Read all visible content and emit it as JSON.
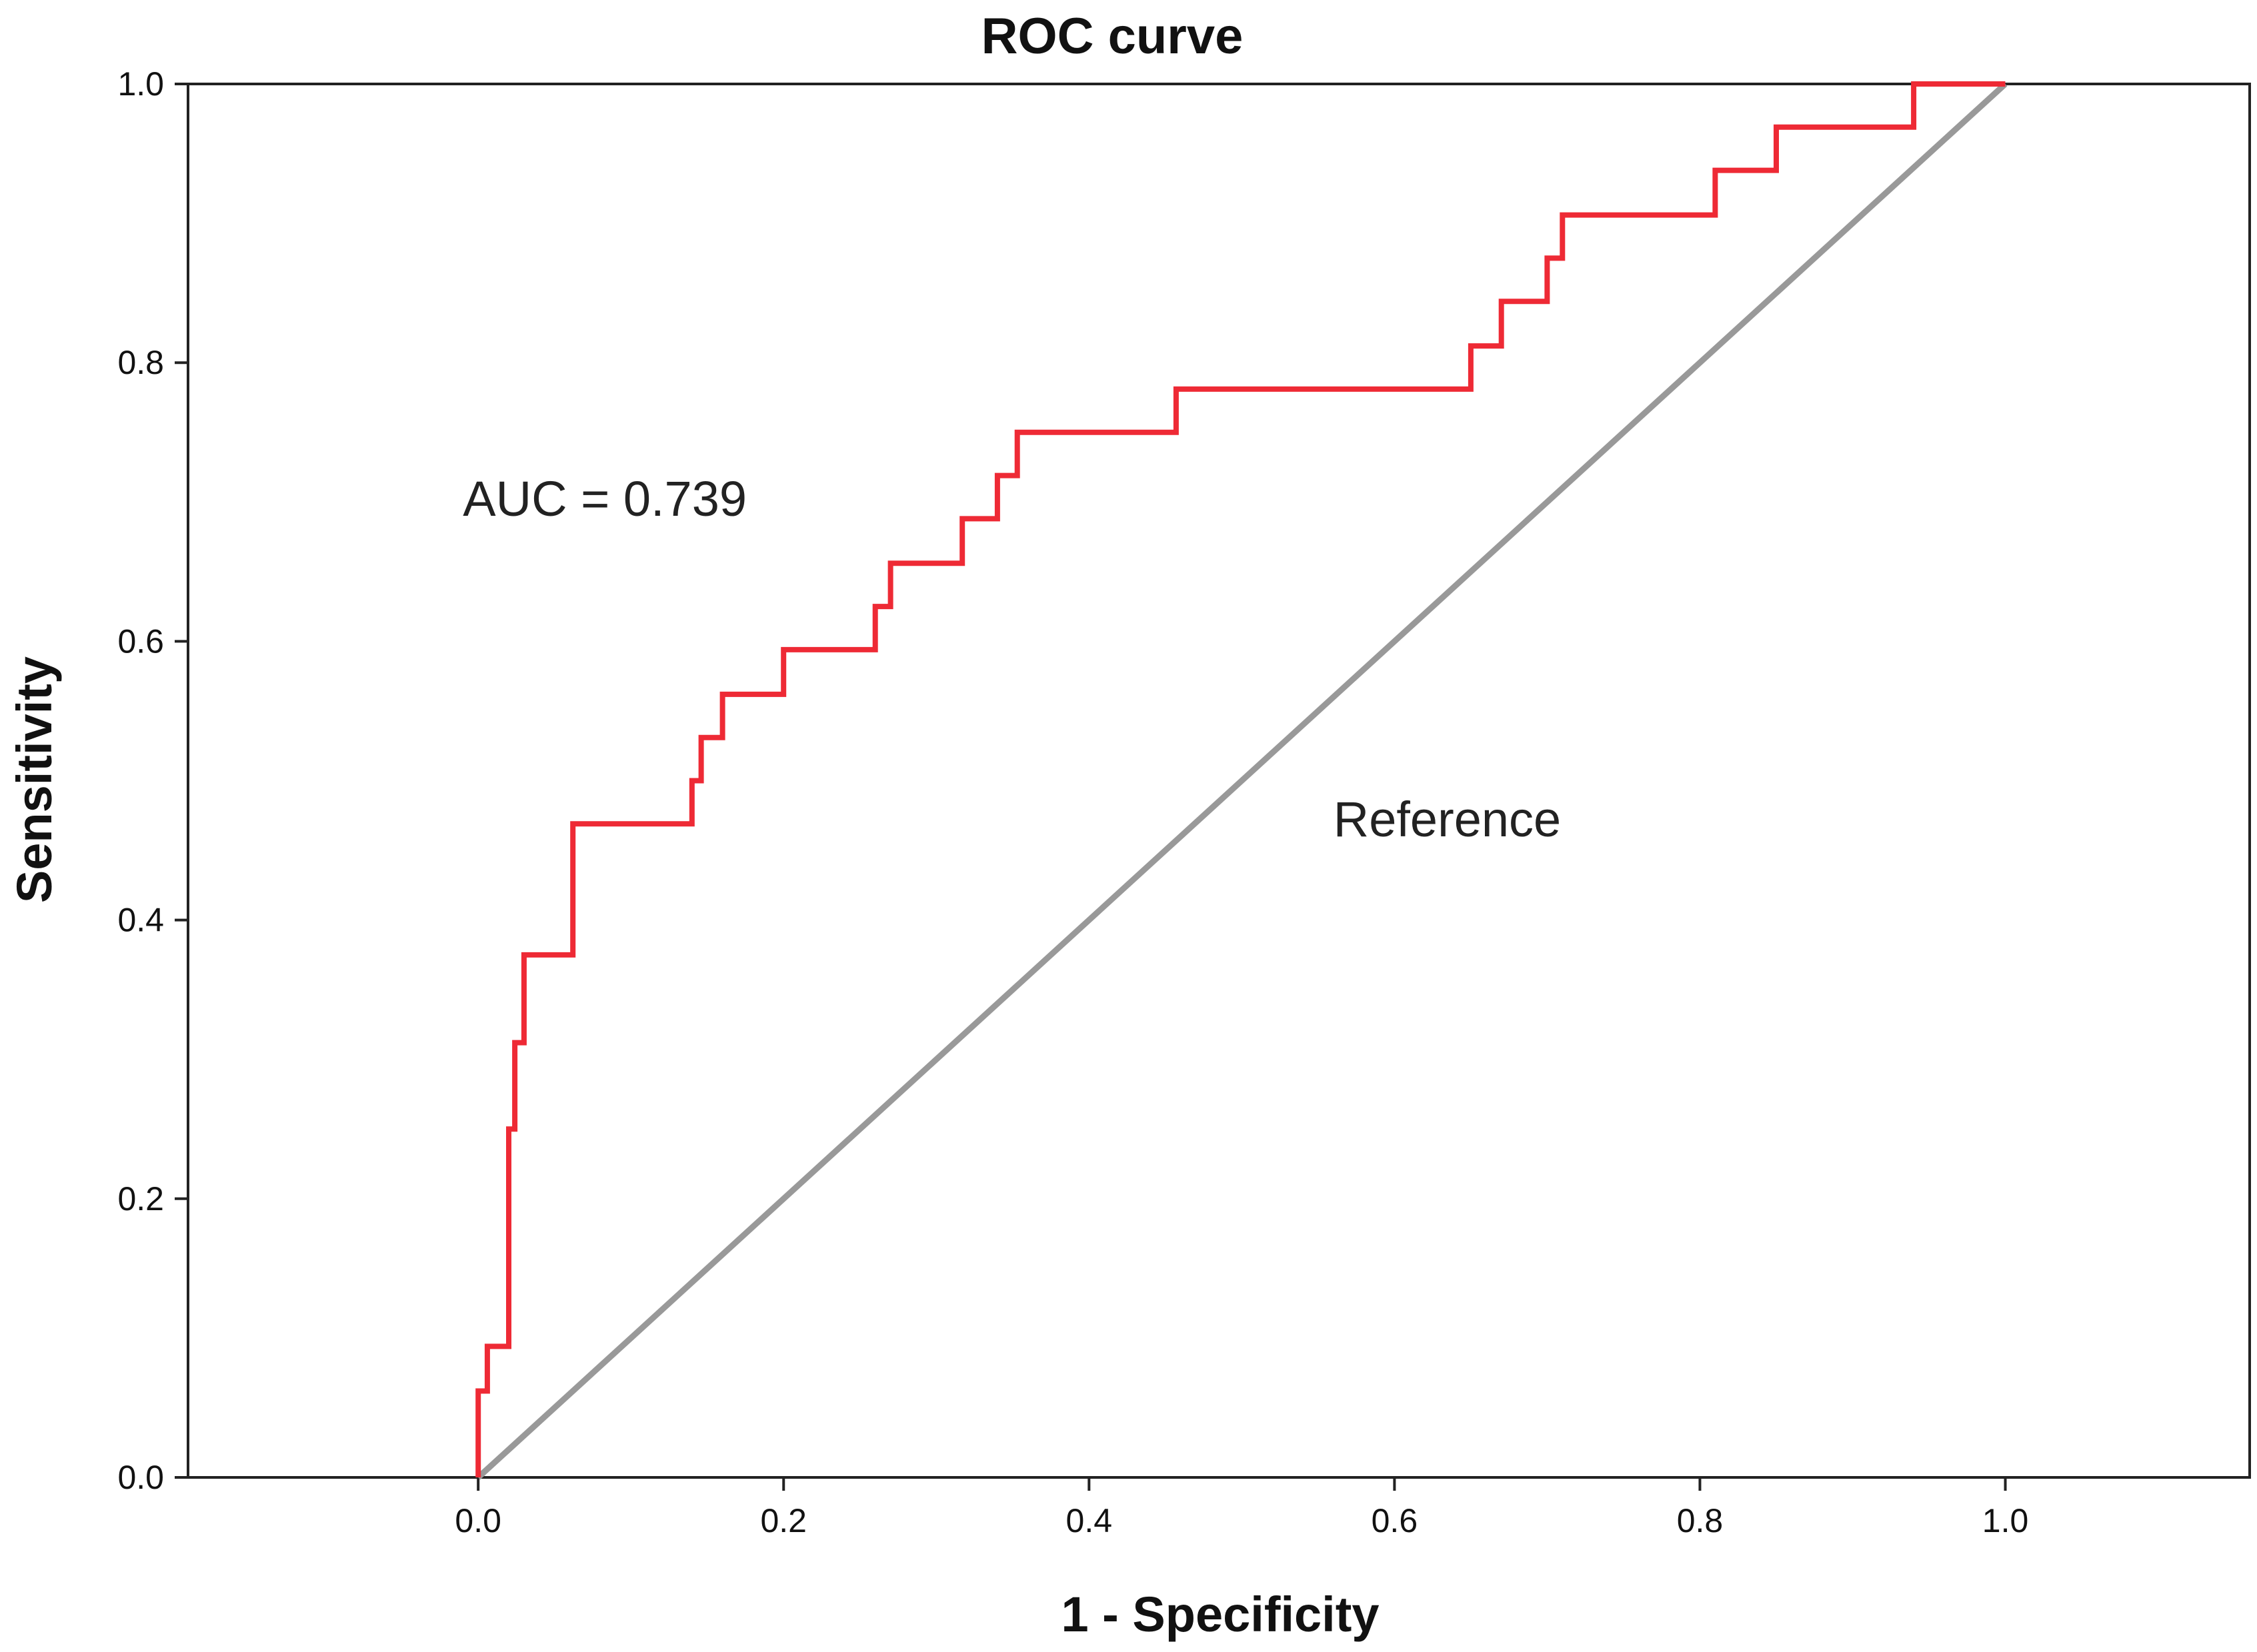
{
  "chart_data": {
    "type": "line",
    "title": "ROC curve",
    "xlabel": "1 - Specificity",
    "ylabel": "Sensitivity",
    "xlim": [
      -0.19,
      1.16
    ],
    "ylim": [
      0.0,
      1.0
    ],
    "xticks": [
      0.0,
      0.2,
      0.4,
      0.6,
      0.8,
      1.0
    ],
    "yticks": [
      0.0,
      0.2,
      0.4,
      0.6,
      0.8,
      1.0
    ],
    "xtick_labels": [
      "0.0",
      "0.2",
      "0.4",
      "0.6",
      "0.8",
      "1.0"
    ],
    "ytick_labels": [
      "0.0",
      "0.2",
      "0.4",
      "0.6",
      "0.8",
      "1.0"
    ],
    "grid": false,
    "series": [
      {
        "name": "ROC",
        "color": "#ee2a35",
        "x": [
          0.0,
          0.0,
          0.006,
          0.006,
          0.02,
          0.02,
          0.024,
          0.024,
          0.03,
          0.03,
          0.042,
          0.042,
          0.062,
          0.062,
          0.14,
          0.14,
          0.146,
          0.146,
          0.16,
          0.16,
          0.2,
          0.2,
          0.26,
          0.26,
          0.27,
          0.27,
          0.317,
          0.317,
          0.34,
          0.34,
          0.353,
          0.353,
          0.457,
          0.457,
          0.65,
          0.65,
          0.67,
          0.67,
          0.7,
          0.7,
          0.71,
          0.71,
          0.81,
          0.81,
          0.85,
          0.85,
          0.94,
          0.94,
          1.0
        ],
        "y": [
          0.0,
          0.062,
          0.062,
          0.094,
          0.094,
          0.25,
          0.25,
          0.312,
          0.312,
          0.375,
          0.375,
          0.375,
          0.375,
          0.469,
          0.469,
          0.5,
          0.5,
          0.531,
          0.531,
          0.562,
          0.562,
          0.594,
          0.594,
          0.625,
          0.625,
          0.656,
          0.656,
          0.688,
          0.688,
          0.719,
          0.719,
          0.75,
          0.75,
          0.781,
          0.781,
          0.812,
          0.812,
          0.844,
          0.844,
          0.875,
          0.875,
          0.906,
          0.906,
          0.938,
          0.938,
          0.969,
          0.969,
          1.0,
          1.0
        ]
      },
      {
        "name": "Reference",
        "color": "#999999",
        "x": [
          0.0,
          1.0
        ],
        "y": [
          0.0,
          1.0
        ]
      }
    ],
    "annotations": [
      {
        "text": "AUC = 0.739",
        "x": -0.01,
        "y": 0.69
      },
      {
        "text": "Reference",
        "x": 0.56,
        "y": 0.46
      }
    ]
  }
}
